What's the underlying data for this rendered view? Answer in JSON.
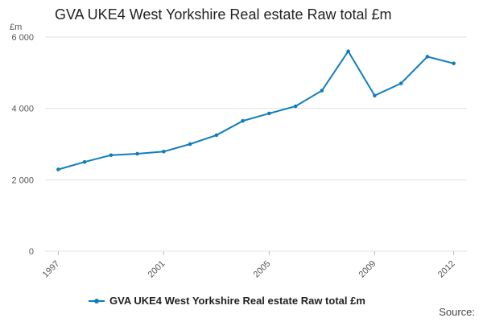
{
  "chart_data": {
    "type": "line",
    "title": "GVA UKE4 West Yorkshire Real estate Raw total £m",
    "unit_label": "£m",
    "ylim": [
      0,
      6000
    ],
    "yticks": [
      0,
      2000,
      4000,
      6000
    ],
    "ytick_labels": [
      "0",
      "2 000",
      "4 000",
      "6 000"
    ],
    "xticks": [
      1997,
      2001,
      2005,
      2009,
      2012
    ],
    "xtick_labels": [
      "1997",
      "2001",
      "2005",
      "2009",
      "2012"
    ],
    "grid": true,
    "legend_position": "bottom",
    "color": "#0f7dbd",
    "series": [
      {
        "name": "GVA UKE4 West Yorkshire Real estate Raw total £m",
        "x": [
          1997,
          1998,
          1999,
          2000,
          2001,
          2002,
          2003,
          2004,
          2005,
          2006,
          2007,
          2008,
          2009,
          2010,
          2011,
          2012
        ],
        "values": [
          2290,
          2500,
          2690,
          2730,
          2790,
          3000,
          3250,
          3650,
          3860,
          4060,
          4500,
          5600,
          4360,
          4700,
          5450,
          5260
        ]
      }
    ]
  },
  "source_label": "Source:"
}
